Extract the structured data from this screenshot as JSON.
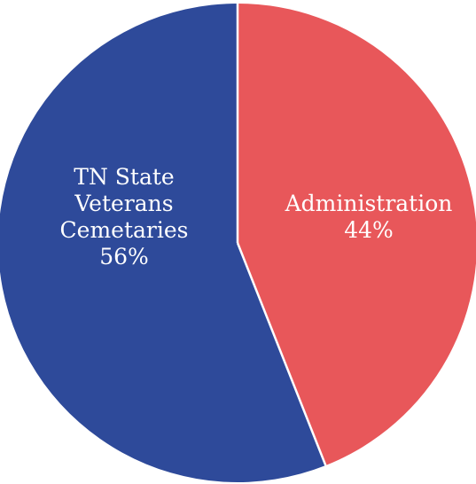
{
  "chart_data": {
    "type": "pie",
    "slices": [
      {
        "label_lines": [
          "Administration"
        ],
        "value": 44,
        "value_label": "44%",
        "color": "#e8575a"
      },
      {
        "label_lines": [
          "TN State",
          "Veterans",
          "Cemetaries"
        ],
        "value": 56,
        "value_label": "56%",
        "color": "#2e4a9a"
      }
    ],
    "separator_color": "#ffffff"
  }
}
